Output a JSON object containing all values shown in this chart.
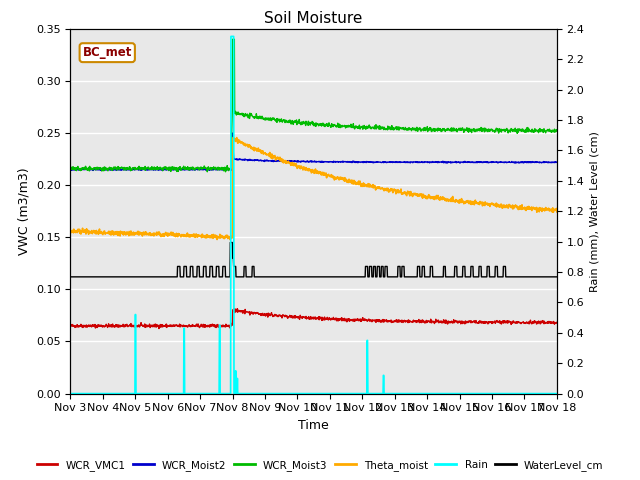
{
  "title": "Soil Moisture",
  "xlabel": "Time",
  "ylabel_left": "VWC (m3/m3)",
  "ylabel_right": "Rain (mm), Water Level (cm)",
  "annotation": "BC_met",
  "ylim_left": [
    0.0,
    0.35
  ],
  "ylim_right": [
    0.0,
    2.4
  ],
  "yticks_left": [
    0.0,
    0.05,
    0.1,
    0.15,
    0.2,
    0.25,
    0.3,
    0.35
  ],
  "yticks_right": [
    0.0,
    0.2,
    0.4,
    0.6,
    0.8,
    1.0,
    1.2,
    1.4,
    1.6,
    1.8,
    2.0,
    2.2,
    2.4
  ],
  "xtick_labels": [
    "Nov 3",
    "Nov 4",
    "Nov 5",
    "Nov 6",
    "Nov 7",
    "Nov 8",
    "Nov 9",
    "Nov 10",
    "Nov 11",
    "Nov 12",
    "Nov 13",
    "Nov 14",
    "Nov 15",
    "Nov 16",
    "Nov 17",
    "Nov 18"
  ],
  "bg_color": "#e8e8e8",
  "grid_color": "#ffffff",
  "lines": {
    "WCR_VMC1": {
      "color": "#cc0000",
      "lw": 1.0
    },
    "WCR_Moist2": {
      "color": "#0000cc",
      "lw": 1.0
    },
    "WCR_Moist3": {
      "color": "#00bb00",
      "lw": 1.0
    },
    "Theta_moist": {
      "color": "#ffaa00",
      "lw": 1.2
    },
    "Rain": {
      "color": "cyan",
      "lw": 1.2
    },
    "WaterLevel_cm": {
      "color": "black",
      "lw": 1.0
    }
  },
  "rain_day": 5.0,
  "legend_labels": [
    "WCR_VMC1",
    "WCR_Moist2",
    "WCR_Moist3",
    "Theta_moist",
    "Rain",
    "WaterLevel_cm"
  ]
}
